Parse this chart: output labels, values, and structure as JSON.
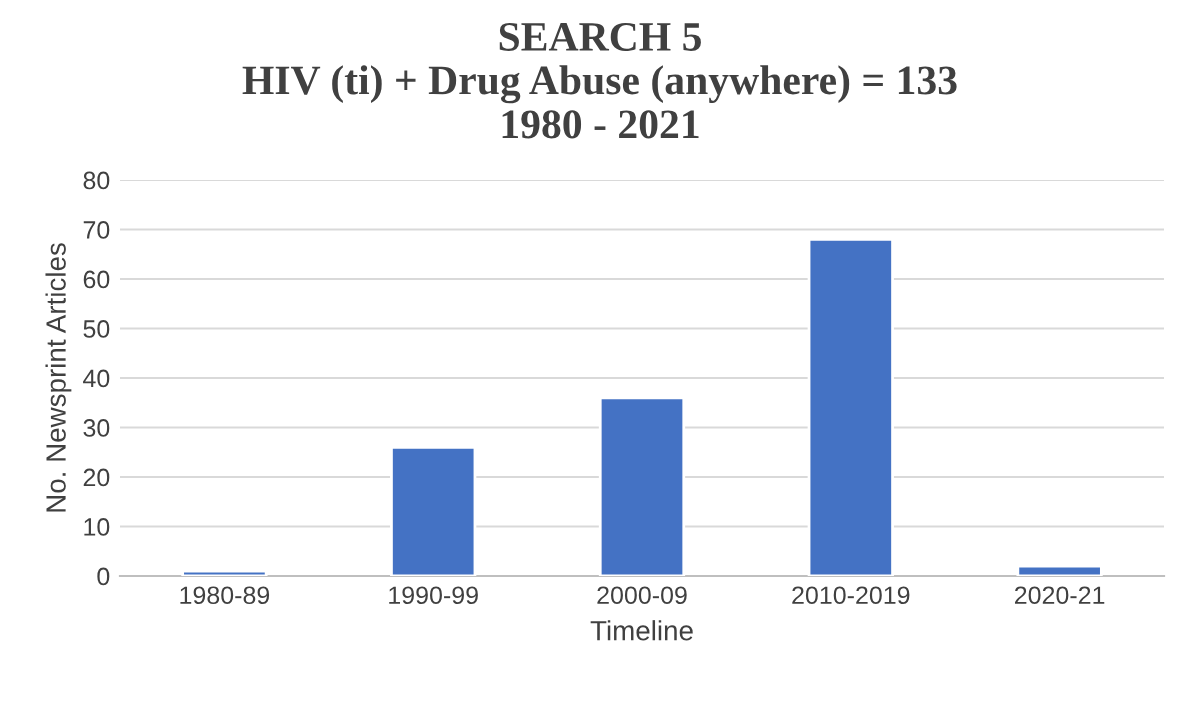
{
  "chart_data": {
    "type": "bar",
    "title": "SEARCH 5\nHIV (ti) + Drug Abuse (anywhere) = 133\n1980 - 2021",
    "xlabel": "Timeline",
    "ylabel": "No. Newsprint Articles",
    "categories": [
      "1980-89",
      "1990-99",
      "2000-09",
      "2010-2019",
      "2020-21"
    ],
    "values": [
      1,
      26,
      36,
      68,
      2
    ],
    "color": "#4472c4",
    "ylim": [
      0,
      80
    ],
    "yticks": [
      0,
      10,
      20,
      30,
      40,
      50,
      60,
      70,
      80
    ],
    "grid": "y",
    "legend": false
  }
}
